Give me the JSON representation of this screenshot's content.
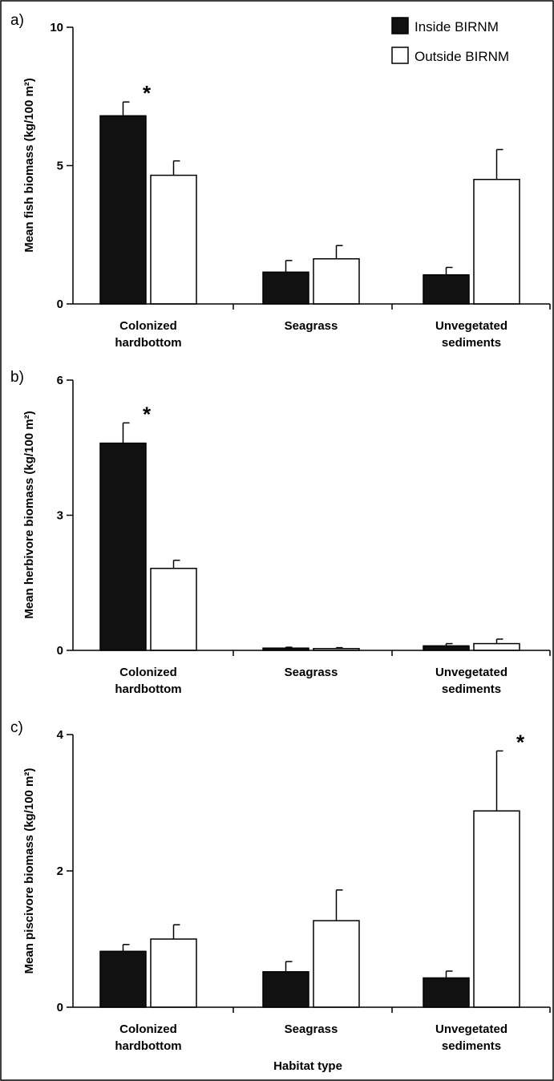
{
  "legend": {
    "inside": "Inside BIRNM",
    "outside": "Outside BIRNM"
  },
  "colors": {
    "inside": "#111111",
    "outside": "#ffffff",
    "stroke": "#000000"
  },
  "xlabel": "Habitat type",
  "chart_data": [
    {
      "type": "bar",
      "panel": "a)",
      "ylabel": "Mean fish biomass (kg/100 m²)",
      "ylim": [
        0,
        10
      ],
      "yticks": [
        "0",
        "5",
        "10"
      ],
      "categories": [
        [
          "Colonized",
          "hardbottom"
        ],
        [
          "Seagrass"
        ],
        [
          "Unvegetated",
          "sediments"
        ]
      ],
      "series": [
        {
          "name": "Inside BIRNM",
          "values": [
            6.8,
            1.15,
            1.05
          ],
          "errors": [
            0.5,
            0.42,
            0.27
          ]
        },
        {
          "name": "Outside BIRNM",
          "values": [
            4.65,
            1.63,
            4.5
          ],
          "errors": [
            0.52,
            0.48,
            1.08
          ]
        }
      ],
      "significance": [
        {
          "category": 0,
          "series": 0,
          "label": "*"
        }
      ]
    },
    {
      "type": "bar",
      "panel": "b)",
      "ylabel": "Mean herbivore biomass (kg/100 m²)",
      "ylim": [
        0,
        6
      ],
      "yticks": [
        "0",
        "3",
        "6"
      ],
      "categories": [
        [
          "Colonized",
          "hardbottom"
        ],
        [
          "Seagrass"
        ],
        [
          "Unvegetated",
          "sediments"
        ]
      ],
      "series": [
        {
          "name": "Inside BIRNM",
          "values": [
            4.6,
            0.05,
            0.1
          ],
          "errors": [
            0.45,
            0.02,
            0.05
          ]
        },
        {
          "name": "Outside BIRNM",
          "values": [
            1.82,
            0.04,
            0.15
          ],
          "errors": [
            0.18,
            0.02,
            0.1
          ]
        }
      ],
      "significance": [
        {
          "category": 0,
          "series": 0,
          "label": "*"
        }
      ]
    },
    {
      "type": "bar",
      "panel": "c)",
      "ylabel": "Mean piscivore biomass (kg/100 m²)",
      "ylim": [
        0,
        4
      ],
      "yticks": [
        "0",
        "2",
        "4"
      ],
      "categories": [
        [
          "Colonized",
          "hardbottom"
        ],
        [
          "Seagrass"
        ],
        [
          "Unvegetated",
          "sediments"
        ]
      ],
      "series": [
        {
          "name": "Inside BIRNM",
          "values": [
            0.82,
            0.52,
            0.43
          ],
          "errors": [
            0.1,
            0.15,
            0.1
          ]
        },
        {
          "name": "Outside BIRNM",
          "values": [
            1.0,
            1.27,
            2.88
          ],
          "errors": [
            0.21,
            0.45,
            0.88
          ]
        }
      ],
      "significance": [
        {
          "category": 2,
          "series": 1,
          "label": "*"
        }
      ]
    }
  ]
}
